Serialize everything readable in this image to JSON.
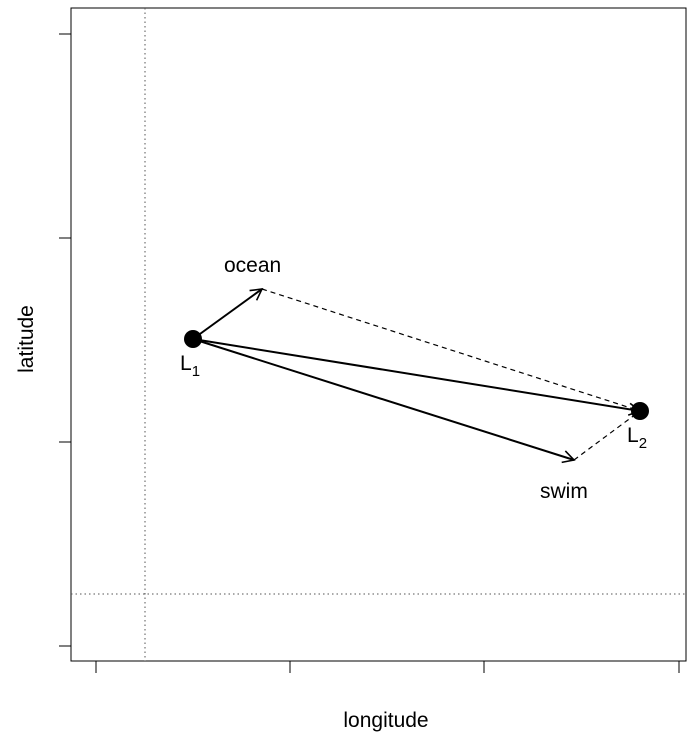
{
  "diagram": {
    "xlabel": "longitude",
    "ylabel": "latitude",
    "points": [
      {
        "id": "L1",
        "main": "L",
        "sub": "1"
      },
      {
        "id": "L2",
        "main": "L",
        "sub": "2"
      }
    ],
    "arrow_labels": {
      "ocean": "ocean",
      "swim": "swim"
    },
    "colors": {
      "ink": "#000000",
      "frame": "#000000",
      "background": "#ffffff"
    }
  }
}
